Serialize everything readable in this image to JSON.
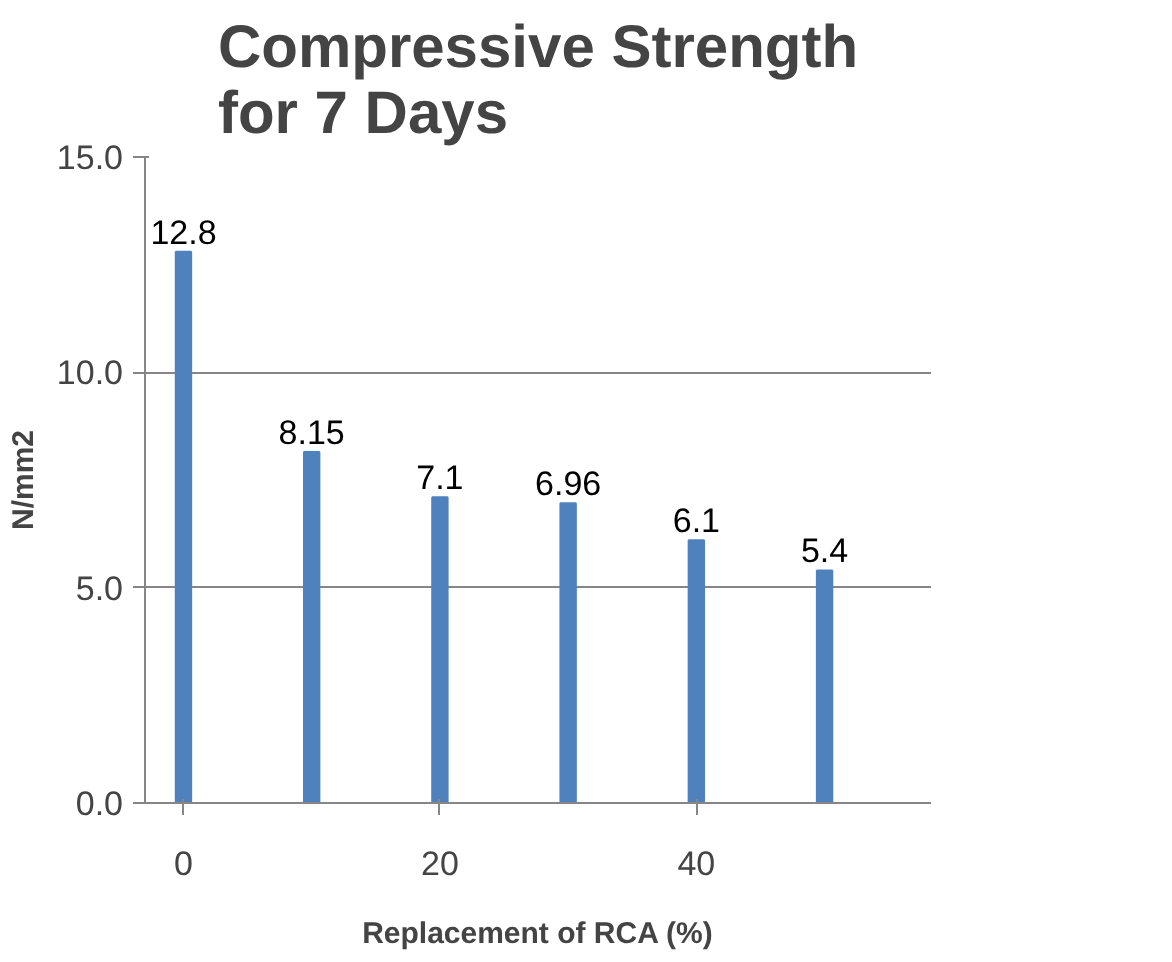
{
  "chart_data": {
    "type": "bar",
    "title": "Compressive Strength for 7 Days",
    "xlabel": "Replacement of RCA (%)",
    "ylabel": "N/mm2",
    "x": [
      0,
      10,
      20,
      30,
      40,
      50
    ],
    "values": [
      12.8,
      8.15,
      7.1,
      6.96,
      6.1,
      5.4
    ],
    "color": "#4f81bd",
    "xlim": [
      -3,
      58.3
    ],
    "xticks": [
      0,
      20,
      40
    ],
    "ylim": [
      0,
      15
    ],
    "yticks": [
      {
        "value": 0,
        "label": "0.0"
      },
      {
        "value": 5,
        "label": "5.0"
      },
      {
        "value": 10,
        "label": "10.0"
      },
      {
        "value": 15,
        "label": "15.0"
      }
    ],
    "grid": "y",
    "data_labels": true
  }
}
